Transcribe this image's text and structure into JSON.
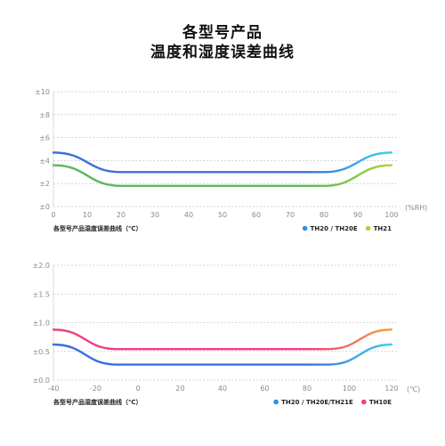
{
  "title_lines": [
    "各型号产品",
    "温度和湿度误差曲线"
  ],
  "chart_data": [
    {
      "type": "line",
      "caption": "各型号产品湿度误差曲线（℃）",
      "x_unit_label": "(%RH)",
      "xlim": [
        0,
        100
      ],
      "ylim": [
        0,
        10
      ],
      "x_ticks": [
        0,
        10,
        20,
        30,
        40,
        50,
        60,
        70,
        80,
        90,
        100
      ],
      "x_tick_labels": [
        "0",
        "10",
        "20",
        "30",
        "40",
        "50",
        "60",
        "70",
        "80",
        "90",
        "100"
      ],
      "y_ticks": [
        0,
        2,
        4,
        6,
        8,
        10
      ],
      "y_tick_labels": [
        "±0",
        "±2",
        "±4",
        "±6",
        "±8",
        "±10"
      ],
      "grid": "horizontal dashed",
      "legend_position": "bottom-right",
      "series": [
        {
          "name": "TH20 / TH20E",
          "color_start": "#3b6fdc",
          "color_end": "#3fd0ee",
          "x": [
            0,
            20,
            80,
            100
          ],
          "y": [
            4.7,
            3.0,
            3.0,
            4.7
          ]
        },
        {
          "name": "TH21",
          "color_start": "#5cb85c",
          "color_end": "#a6d63a",
          "x": [
            0,
            20,
            80,
            100
          ],
          "y": [
            3.6,
            1.8,
            1.8,
            3.6
          ]
        }
      ]
    },
    {
      "type": "line",
      "caption": "各型号产品湿度误差曲线（℃）",
      "x_unit_label": "(℃)",
      "xlim": [
        -40,
        120
      ],
      "ylim": [
        0,
        2
      ],
      "x_ticks": [
        -40,
        -20,
        0,
        20,
        40,
        60,
        80,
        100,
        120
      ],
      "x_tick_labels": [
        "-40",
        "-20",
        "0",
        "20",
        "40",
        "60",
        "80",
        "100",
        "120"
      ],
      "y_ticks": [
        0,
        0.5,
        1.0,
        1.5,
        2.0
      ],
      "y_tick_labels": [
        "±0.0",
        "±0.5",
        "±1.0",
        "±1.5",
        "±2.0"
      ],
      "grid": "horizontal dashed",
      "legend_position": "bottom-right",
      "series": [
        {
          "name": "TH20 / TH20E/TH21E",
          "color_start": "#3b6fdc",
          "color_end": "#3fd0ee",
          "x": [
            -40,
            -10,
            90,
            120
          ],
          "y": [
            0.62,
            0.27,
            0.27,
            0.62
          ]
        },
        {
          "name": "TH10E",
          "color_start": "#ee3f86",
          "color_end": "#f6a23c",
          "x": [
            -40,
            -10,
            90,
            120
          ],
          "y": [
            0.88,
            0.54,
            0.54,
            0.88
          ]
        }
      ]
    }
  ]
}
